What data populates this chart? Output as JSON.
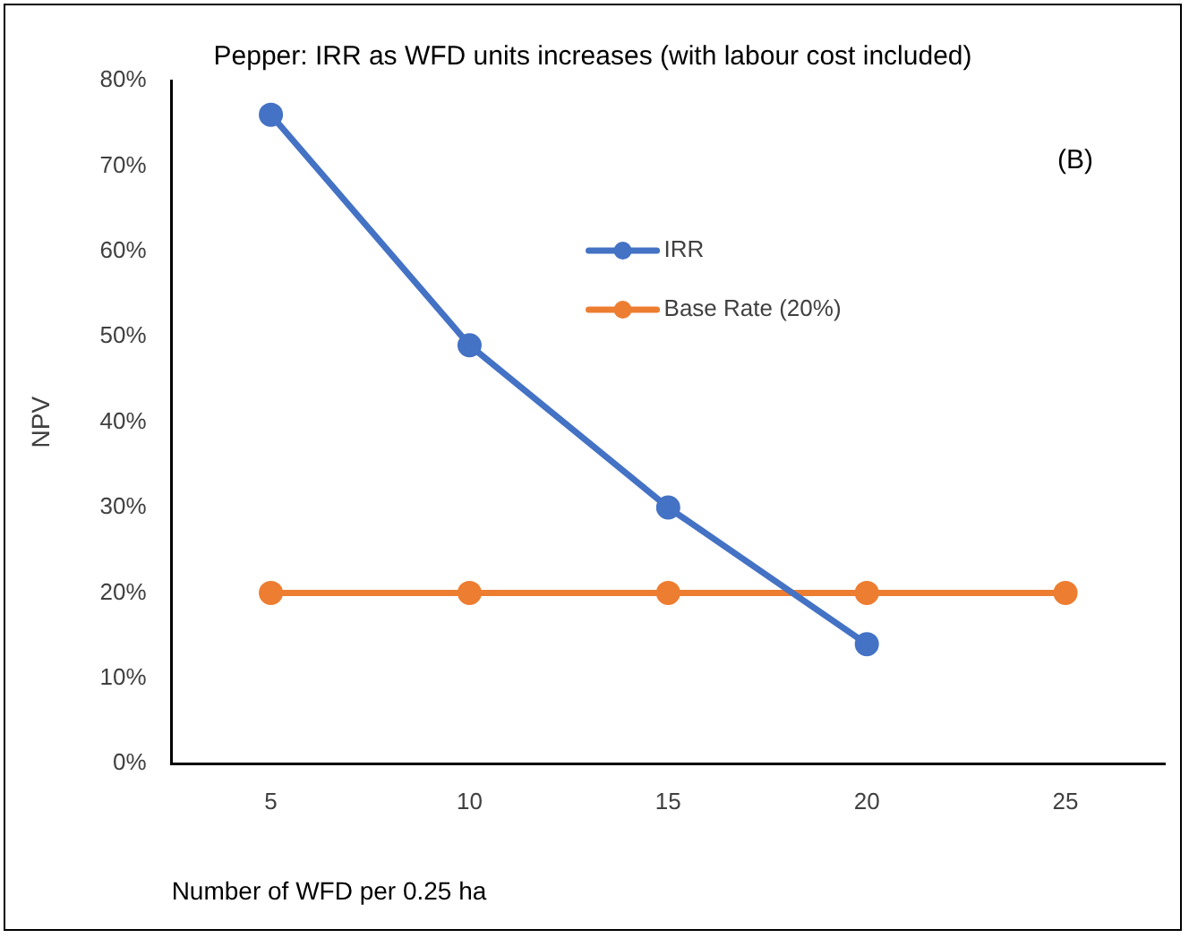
{
  "chart_data": {
    "type": "line",
    "title": "Pepper: IRR as WFD units increases (with labour cost included)",
    "xlabel": "Number of WFD per 0.25 ha",
    "ylabel": "NPV",
    "categories": [
      "5",
      "10",
      "15",
      "20",
      "25"
    ],
    "series": [
      {
        "name": "IRR",
        "color": "#4472c4",
        "values": [
          76,
          49,
          30,
          14,
          null
        ]
      },
      {
        "name": "Base Rate (20%)",
        "color": "#ed7d31",
        "values": [
          20,
          20,
          20,
          20,
          20
        ]
      }
    ],
    "ylim": [
      0,
      80
    ],
    "yticks": [
      {
        "value": 0,
        "label": "0%"
      },
      {
        "value": 10,
        "label": "10%"
      },
      {
        "value": 20,
        "label": "20%"
      },
      {
        "value": 30,
        "label": "30%"
      },
      {
        "value": 40,
        "label": "40%"
      },
      {
        "value": 50,
        "label": "50%"
      },
      {
        "value": 60,
        "label": "60%"
      },
      {
        "value": 70,
        "label": "70%"
      },
      {
        "value": 80,
        "label": "80%"
      }
    ],
    "annotations": [
      "(B)"
    ],
    "grid": false,
    "legend": "top",
    "marker": "circle",
    "line_style": "solid"
  }
}
